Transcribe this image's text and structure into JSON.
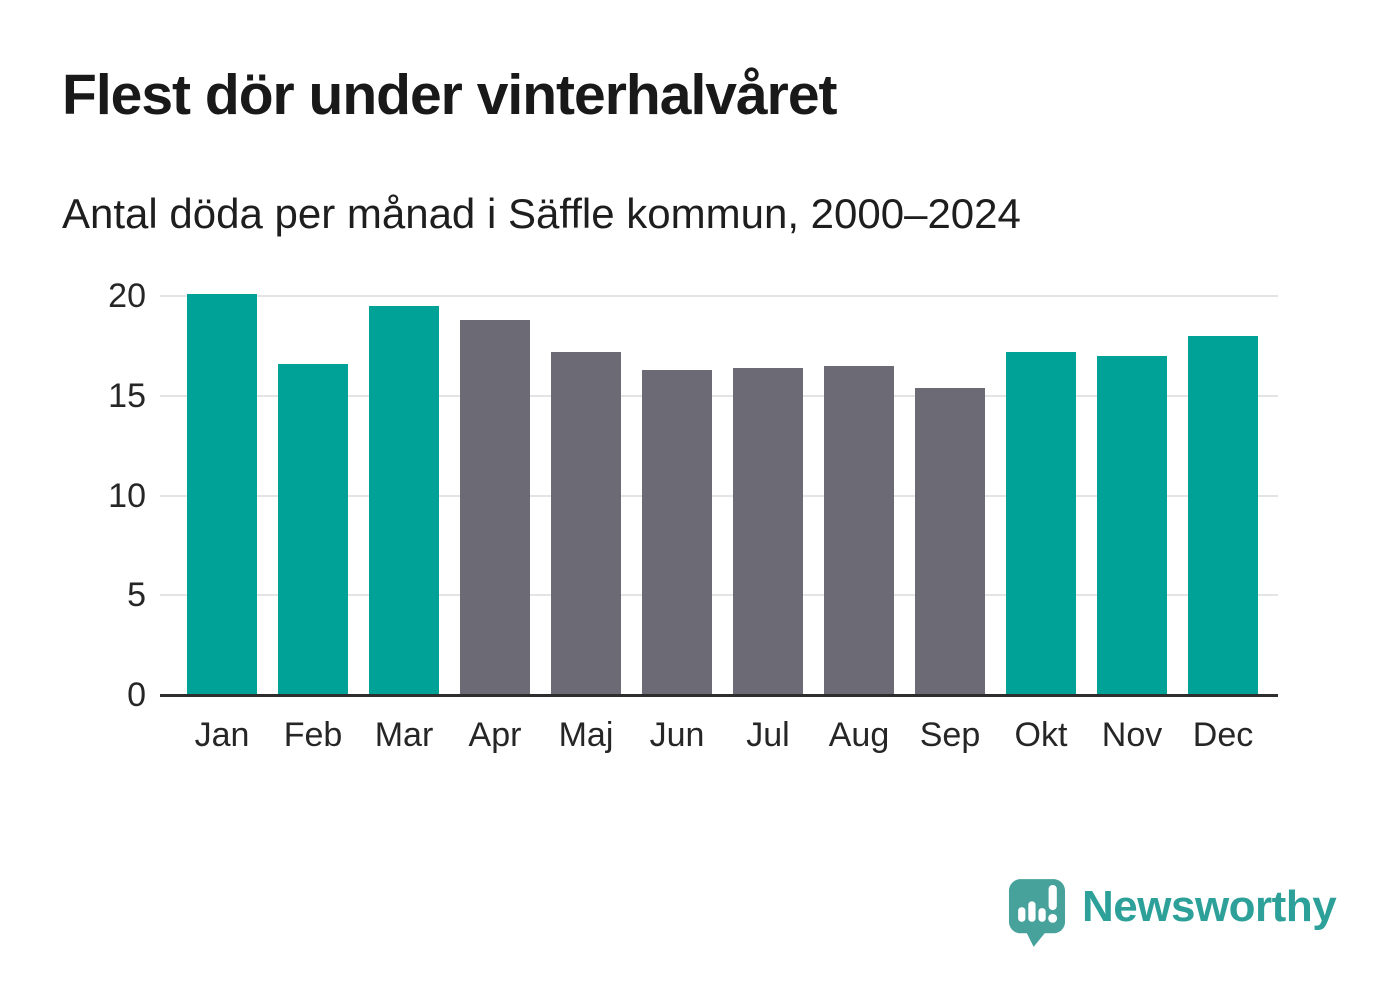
{
  "chart_data": {
    "type": "bar",
    "title": "Flest dör under vinterhalvåret",
    "subtitle": "Antal döda per månad i Säffle kommun, 2000–2024",
    "categories": [
      "Jan",
      "Feb",
      "Mar",
      "Apr",
      "Maj",
      "Jun",
      "Jul",
      "Aug",
      "Sep",
      "Okt",
      "Nov",
      "Dec"
    ],
    "values": [
      20.1,
      16.6,
      19.5,
      18.8,
      17.2,
      16.3,
      16.4,
      16.5,
      15.4,
      17.2,
      17.0,
      18.0
    ],
    "bar_colors": [
      "#00a298",
      "#00a298",
      "#00a298",
      "#6c6a75",
      "#6c6a75",
      "#6c6a75",
      "#6c6a75",
      "#6c6a75",
      "#6c6a75",
      "#00a298",
      "#00a298",
      "#00a298"
    ],
    "highlight_color": "#00a298",
    "muted_color": "#6c6a75",
    "xlabel": "",
    "ylabel": "",
    "ylim": [
      0,
      20
    ],
    "yticks": [
      0,
      5,
      10,
      15,
      20
    ],
    "grid": "horizontal",
    "legend": "none"
  },
  "branding": {
    "logo_text": "Newsworthy",
    "logo_icon": "newsworthy-speech-bubble-chart-icon",
    "logo_text_color": "#2da199",
    "logo_icon_color": "#48a29c"
  },
  "style_colors": {
    "background": "#ffffff",
    "gridline": "#e4e4e4",
    "axis_line": "#2e2e2e",
    "title_text": "#191919",
    "tick_text": "#262626"
  }
}
